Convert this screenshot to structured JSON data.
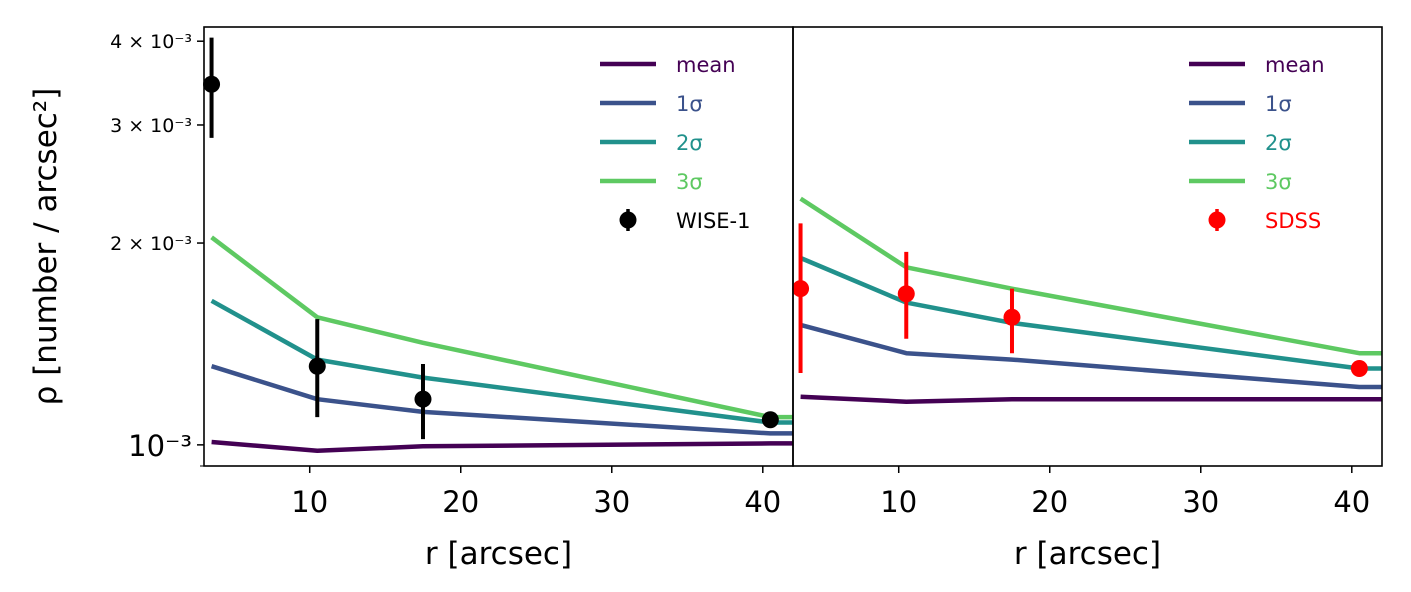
{
  "chart_data": {
    "type": "line",
    "ylabel": "ρ [number / arcsec²]",
    "yscale": "log",
    "ylim": [
      0.00093,
      0.0042
    ],
    "yticks": [
      {
        "value": 0.001,
        "label": "10⁻³"
      },
      {
        "value": 0.002,
        "label": "2 × 10⁻³"
      },
      {
        "value": 0.003,
        "label": "3 × 10⁻³"
      },
      {
        "value": 0.004,
        "label": "4 × 10⁻³"
      }
    ],
    "panels": [
      {
        "id": "left",
        "xlabel": "r [arcsec]",
        "xlim": [
          3,
          42
        ],
        "xticks": [
          10,
          20,
          30,
          40
        ],
        "x": [
          3.5,
          10.5,
          17.5,
          40.5,
          42
        ],
        "series": [
          {
            "name": "mean",
            "color": "#440154",
            "values": [
              0.00101,
              0.00098,
              0.000995,
              0.001005,
              0.001005
            ]
          },
          {
            "name": "1σ",
            "color": "#3b528b",
            "values": [
              0.00131,
              0.00117,
              0.00112,
              0.00104,
              0.00104
            ]
          },
          {
            "name": "2σ",
            "color": "#21918c",
            "values": [
              0.00164,
              0.00134,
              0.00126,
              0.00108,
              0.00108
            ]
          },
          {
            "name": "3σ",
            "color": "#5ec962",
            "values": [
              0.00204,
              0.00155,
              0.00142,
              0.0011,
              0.0011
            ]
          }
        ],
        "observation": {
          "name": "WISE-1",
          "color": "#000000",
          "x": [
            3.5,
            10.5,
            17.5,
            40.5
          ],
          "y": [
            0.00345,
            0.00131,
            0.00117,
            0.00109
          ],
          "yerr_low": [
            0.00287,
            0.0011,
            0.00102,
            0.00107
          ],
          "yerr_high": [
            0.00405,
            0.00154,
            0.00132,
            0.00111
          ]
        }
      },
      {
        "id": "right",
        "xlabel": "r [arcsec]",
        "xlim": [
          3,
          42
        ],
        "xticks": [
          10,
          20,
          30,
          40
        ],
        "x": [
          3.5,
          10.5,
          17.5,
          40.5,
          42
        ],
        "series": [
          {
            "name": "mean",
            "color": "#440154",
            "values": [
              0.00118,
              0.00116,
              0.00117,
              0.00117,
              0.00117
            ]
          },
          {
            "name": "1σ",
            "color": "#3b528b",
            "values": [
              0.00151,
              0.00137,
              0.00134,
              0.00122,
              0.00122
            ]
          },
          {
            "name": "2σ",
            "color": "#21918c",
            "values": [
              0.0019,
              0.00163,
              0.00152,
              0.0013,
              0.0013
            ]
          },
          {
            "name": "3σ",
            "color": "#5ec962",
            "values": [
              0.00233,
              0.00184,
              0.00171,
              0.00137,
              0.00137
            ]
          }
        ],
        "observation": {
          "name": "SDSS",
          "color": "#ff0000",
          "x": [
            3.5,
            10.5,
            17.5,
            40.5
          ],
          "y": [
            0.00171,
            0.00168,
            0.00155,
            0.0013
          ],
          "yerr_low": [
            0.00128,
            0.00144,
            0.00137,
            0.00129
          ],
          "yerr_high": [
            0.00214,
            0.00194,
            0.00171,
            0.00132
          ]
        }
      }
    ]
  }
}
